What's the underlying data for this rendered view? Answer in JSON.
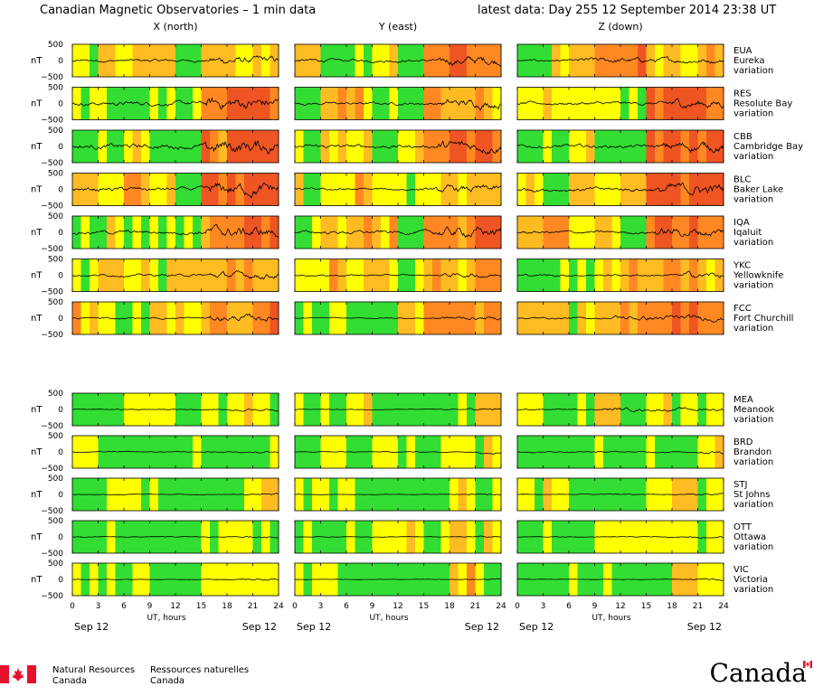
{
  "header": {
    "title": "Canadian Magnetic Observatories – 1 min data",
    "latest": "latest data: Day 255   12 September 2014 23:38 UT"
  },
  "footer": {
    "nrc_en_1": "Natural Resources",
    "nrc_en_2": "Canada",
    "nrc_fr_1": "Ressources naturelles",
    "nrc_fr_2": "Canada",
    "wordmark": "Canada"
  },
  "chart_data": {
    "type": "line",
    "title": "Canadian Magnetic Observatories – 1 min data",
    "columns": [
      "X (north)",
      "Y (east)",
      "Z (down)"
    ],
    "ylabel": "nT",
    "yticks": [
      "500",
      "0",
      "−500"
    ],
    "ylim": [
      -500,
      500
    ],
    "xticks": [
      "0",
      "3",
      "6",
      "9",
      "12",
      "15",
      "18",
      "21",
      "24"
    ],
    "xlim": [
      0,
      24
    ],
    "xlabel": "UT, hours",
    "date_start": "Sep 12",
    "date_end": "Sep 12",
    "activity_colors": {
      "quiet": "#33dd33",
      "unsettled": "#ffff00",
      "active": "#ffbb22",
      "storm": "#ff8822",
      "major": "#ee5522"
    },
    "stations": [
      {
        "code": "EUA",
        "name": "Eureka",
        "sub": "variation",
        "amp": [
          140,
          160,
          90
        ],
        "storm": [
          16,
          17,
          7
        ]
      },
      {
        "code": "RES",
        "name": "Resolute Bay",
        "sub": "variation",
        "amp": [
          220,
          150,
          170
        ],
        "storm": [
          15.5,
          17,
          17
        ]
      },
      {
        "code": "CBB",
        "name": "Cambridge Bay",
        "sub": "variation",
        "amp": [
          260,
          190,
          180
        ],
        "storm": [
          15.5,
          16.5,
          17
        ]
      },
      {
        "code": "BLC",
        "name": "Baker Lake",
        "sub": "variation",
        "amp": [
          220,
          130,
          200
        ],
        "storm": [
          16,
          16.5,
          16.5
        ]
      },
      {
        "code": "IQA",
        "name": "Iqaluit",
        "sub": "variation",
        "amp": [
          200,
          180,
          160
        ],
        "storm": [
          15.5,
          16,
          16
        ]
      },
      {
        "code": "YKC",
        "name": "Yellowknife",
        "sub": "variation",
        "amp": [
          120,
          80,
          110
        ],
        "storm": [
          16,
          17,
          19
        ]
      },
      {
        "code": "FCC",
        "name": "Fort Churchill",
        "sub": "variation",
        "amp": [
          110,
          60,
          90
        ],
        "storm": [
          16,
          17,
          11
        ]
      },
      {
        "code": "MEA",
        "name": "Meanook",
        "sub": "variation",
        "amp": [
          50,
          40,
          60
        ],
        "storm": [
          18,
          20,
          10
        ]
      },
      {
        "code": "BRD",
        "name": "Brandon",
        "sub": "variation",
        "amp": [
          50,
          40,
          60
        ],
        "storm": [
          21,
          21,
          21
        ]
      },
      {
        "code": "STJ",
        "name": "St Johns",
        "sub": "variation",
        "amp": [
          35,
          30,
          40
        ],
        "storm": [
          20,
          20,
          20
        ]
      },
      {
        "code": "OTT",
        "name": "Ottawa",
        "sub": "variation",
        "amp": [
          40,
          35,
          45
        ],
        "storm": [
          20,
          20,
          20
        ]
      },
      {
        "code": "VIC",
        "name": "Victoria",
        "sub": "variation",
        "amp": [
          30,
          25,
          30
        ],
        "storm": [
          20,
          20,
          20
        ]
      }
    ]
  }
}
